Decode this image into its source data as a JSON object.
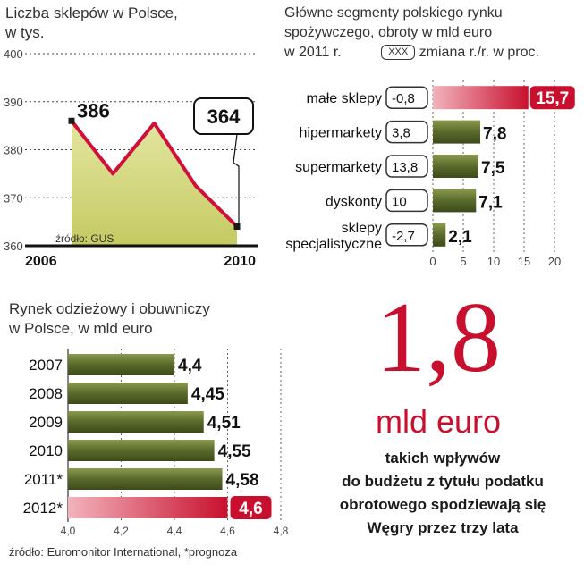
{
  "chart_data": [
    {
      "type": "line",
      "title": "Liczba sklepów w Polsce,",
      "subtitle": "w tys.",
      "x": [
        2006,
        2007,
        2008,
        2009,
        2010
      ],
      "values": [
        386,
        375,
        385.5,
        372.5,
        364
      ],
      "x_labels": [
        "2006",
        "2010"
      ],
      "y_ticks": [
        400,
        390,
        380,
        370,
        360
      ],
      "ylim": [
        360,
        400
      ],
      "annotations": [
        {
          "label": "386",
          "value": 386
        },
        {
          "label": "364",
          "value": 364
        }
      ],
      "source": "źródło: GUS",
      "colors": {
        "line": "#d0103a",
        "fill": "#d2d77c",
        "marker": "#1a1a1a"
      }
    },
    {
      "type": "bar",
      "title": "Główne segmenty polskiego rynku",
      "subtitle": "spożywczego, obroty w mld euro",
      "subtitle2": "w 2011 r.",
      "legend_box": "XXX",
      "legend_text": "zmiana r./r. w proc.",
      "categories": [
        "małe sklepy",
        "hipermarkety",
        "supermarkety",
        "dyskonty",
        "sklepy\nspecjalistyczne"
      ],
      "values": [
        15.7,
        7.8,
        7.5,
        7.1,
        2.1
      ],
      "value_labels": [
        "15,7",
        "7,8",
        "7,5",
        "7,1",
        "2,1"
      ],
      "changes": [
        "-0,8",
        "3,8",
        "13,8",
        "10",
        "-2,7"
      ],
      "x_ticks": [
        0,
        5,
        10,
        15,
        20
      ],
      "xlim": [
        0,
        20
      ],
      "highlight_index": 0,
      "colors": {
        "bar": "#5a6a2c",
        "highlight": "#c8102e"
      }
    },
    {
      "type": "bar",
      "title": "Rynek odzieżowy i obuwniczy",
      "subtitle": "w Polsce, w mld euro",
      "categories": [
        "2007",
        "2008",
        "2009",
        "2010",
        "2011*",
        "2012*"
      ],
      "values": [
        4.4,
        4.45,
        4.51,
        4.55,
        4.58,
        4.6
      ],
      "value_labels": [
        "4,4",
        "4,45",
        "4,51",
        "4,55",
        "4,58",
        "4,6"
      ],
      "x_ticks": [
        4.0,
        4.2,
        4.4,
        4.6,
        4.8
      ],
      "x_tick_labels": [
        "4,0",
        "4,2",
        "4,4",
        "4,6",
        "4,8"
      ],
      "xlim": [
        4.0,
        4.8
      ],
      "highlight_index": 5,
      "source": "źródło: Euromonitor International, *prognoza",
      "colors": {
        "bar": "#5a6a2c",
        "highlight": "#c8102e"
      }
    }
  ],
  "callout": {
    "number": "1,8",
    "unit": "mld euro",
    "lines": [
      "takich wpływów",
      "do budżetu z tytułu podatku",
      "obrotowego spodziewają się",
      "Węgry przez trzy lata"
    ]
  }
}
